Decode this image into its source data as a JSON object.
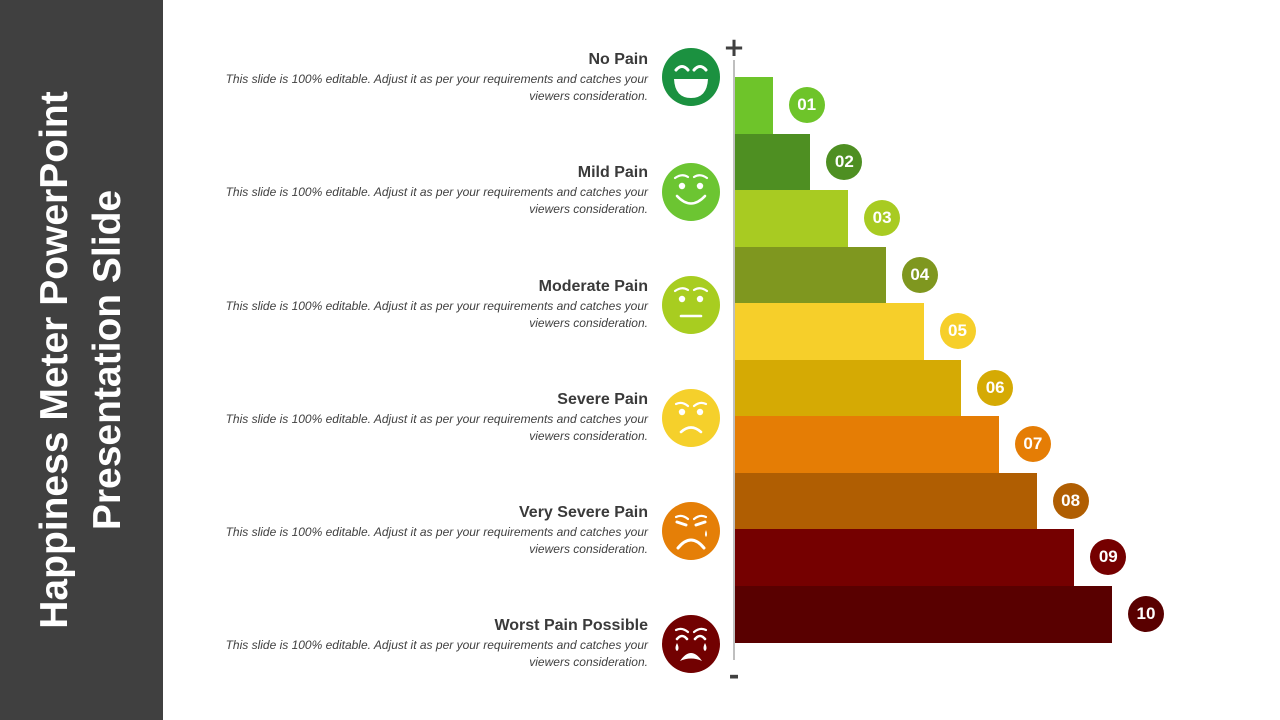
{
  "slide": {
    "title_line1": "Happiness Meter PowerPoint",
    "title_line2": "Presentation Slide",
    "axis_top": "+",
    "axis_bottom": "-"
  },
  "levels": [
    {
      "title": "No Pain",
      "description": "This slide is 100% editable. Adjust it as per your requirements and catches your viewers consideration.",
      "face_color": "#1b9140",
      "icon": "laughing-face-icon"
    },
    {
      "title": "Mild Pain",
      "description": "This slide is 100% editable. Adjust it as per your requirements and catches your viewers consideration.",
      "face_color": "#6cc532",
      "icon": "smiling-face-icon"
    },
    {
      "title": "Moderate Pain",
      "description": "This slide is 100% editable. Adjust it as per your requirements and catches your viewers consideration.",
      "face_color": "#a8cd20",
      "icon": "neutral-face-icon"
    },
    {
      "title": "Severe Pain",
      "description": "This slide is 100% editable. Adjust it as per your requirements and catches your viewers consideration.",
      "face_color": "#f5d02b",
      "icon": "frowning-face-icon"
    },
    {
      "title": "Very Severe Pain",
      "description": "This slide is 100% editable. Adjust it as per your requirements and catches your viewers consideration.",
      "face_color": "#e57f07",
      "icon": "sad-face-icon"
    },
    {
      "title": "Worst Pain Possible",
      "description": "This slide is 100% editable. Adjust it as per your requirements and catches your viewers consideration.",
      "face_color": "#720101",
      "icon": "crying-face-icon"
    }
  ],
  "scale": [
    {
      "label": "01",
      "color": "#6ec42a"
    },
    {
      "label": "02",
      "color": "#4e8f22"
    },
    {
      "label": "03",
      "color": "#a8cb22"
    },
    {
      "label": "04",
      "color": "#7f971f"
    },
    {
      "label": "05",
      "color": "#f6cf2a"
    },
    {
      "label": "06",
      "color": "#d5aa04"
    },
    {
      "label": "07",
      "color": "#e57d05"
    },
    {
      "label": "08",
      "color": "#b05e02"
    },
    {
      "label": "09",
      "color": "#750000"
    },
    {
      "label": "10",
      "color": "#590000"
    }
  ]
}
